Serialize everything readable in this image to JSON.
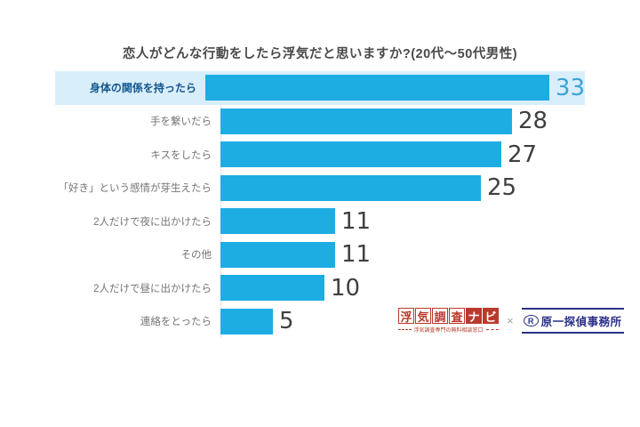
{
  "chart_data": {
    "type": "bar",
    "orientation": "horizontal",
    "title": "恋人がどんな行動をしたら浮気だと思いますか?(20代〜50代男性)",
    "categories": [
      "身体の関係を持ったら",
      "手を繋いだら",
      "キスをしたら",
      "「好き」という感情が芽生えたら",
      "2人だけで夜に出かけたら",
      "その他",
      "2人だけで昼に出かけたら",
      "連絡をとったら"
    ],
    "values": [
      33,
      28,
      27,
      25,
      11,
      11,
      10,
      5
    ],
    "highlight_index": 0,
    "xlim": [
      0,
      35
    ],
    "grid": false,
    "legend": "none",
    "colors": {
      "bar": "#1eade3",
      "highlight_bg": "#d9eefb",
      "highlight_label": "#14568c",
      "label": "#757575",
      "value": "#3f3f3f",
      "highlight_value": "#3ba3d6"
    }
  },
  "footer": {
    "uwaki_navi": {
      "boxed_chars": [
        "浮",
        "気",
        "調",
        "査"
      ],
      "solid_chars": [
        "ナ",
        "ビ"
      ],
      "tagline": "浮気調査専門の無料相談窓口",
      "color": "#b93a2c"
    },
    "separator": "×",
    "haraichi": {
      "mark": "R",
      "name": "原一探偵事務所",
      "color": "#2b3187"
    }
  }
}
